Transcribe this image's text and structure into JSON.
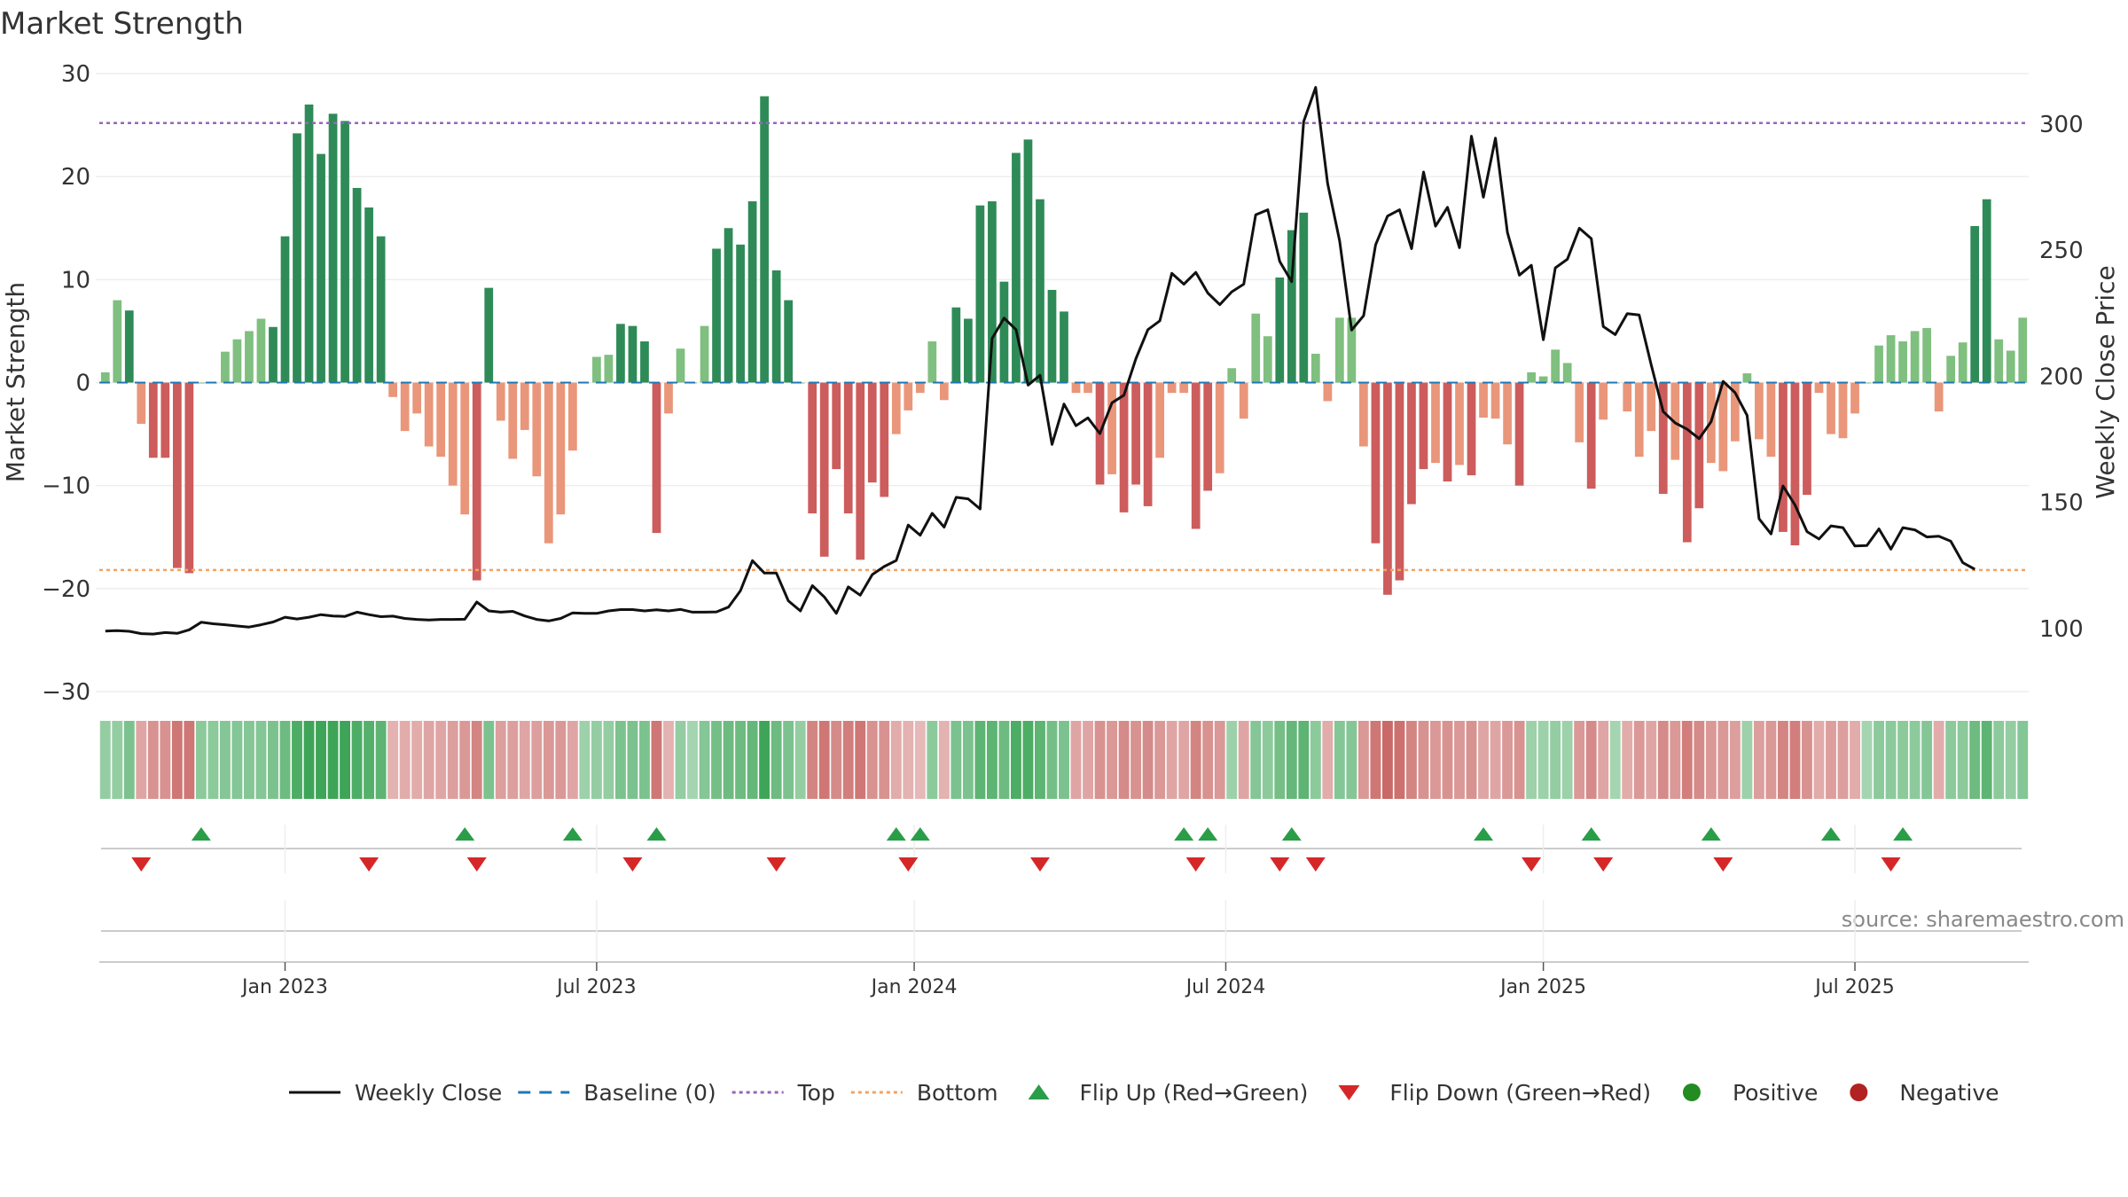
{
  "chart_data": {
    "type": "bar",
    "title": "Market Strength",
    "source_note": "source: sharemaestro.com",
    "ylabel": "Market Strength",
    "ylabel_right": "Weekly Close Price",
    "ylim": [
      -30,
      30
    ],
    "ylim_right": [
      75,
      320
    ],
    "yticks": [
      "30",
      "20",
      "10",
      "0",
      "−10",
      "−20",
      "−30"
    ],
    "yticks_values": [
      30,
      20,
      10,
      0,
      -10,
      -20,
      -30
    ],
    "yticks_right": [
      "300",
      "250",
      "200",
      "150",
      "100"
    ],
    "yticks_right_values": [
      300,
      250,
      200,
      150,
      100
    ],
    "x_ticks": [
      "Jan 2023",
      "Jul 2023",
      "Jan 2024",
      "Jul 2024",
      "Jan 2025",
      "Jul 2025"
    ],
    "x_ticks_week_index": [
      15,
      41,
      67.5,
      93.5,
      120,
      146
    ],
    "top_line": 25.2,
    "bottom_line": -18.2,
    "strength": [
      1,
      8,
      7,
      -4,
      -7.3,
      -7.3,
      -18,
      -18.5,
      0,
      0,
      3,
      4.2,
      5,
      6.2,
      5.4,
      14.2,
      24.2,
      27,
      22.2,
      26.1,
      25.4,
      18.9,
      17,
      14.2,
      -1.4,
      -4.7,
      -3,
      -6.2,
      -7.2,
      -10,
      -12.8,
      -19.2,
      9.2,
      -3.7,
      -7.4,
      -4.6,
      -9.1,
      -15.6,
      -12.8,
      -6.6,
      0,
      2.5,
      2.7,
      5.7,
      5.5,
      4,
      -14.6,
      -3,
      3.3,
      0,
      5.5,
      13,
      15,
      13.4,
      17.6,
      27.8,
      10.9,
      8,
      0,
      -12.7,
      -16.9,
      -8.4,
      -12.7,
      -17.2,
      -9.7,
      -11.1,
      -5,
      -2.7,
      -1,
      4,
      -1.7,
      7.3,
      6.2,
      17.2,
      17.6,
      9.8,
      22.3,
      23.6,
      17.8,
      9,
      6.9,
      -1,
      -1,
      -9.9,
      -8.9,
      -12.6,
      -9.9,
      -12,
      -7.3,
      -1,
      -1,
      -14.2,
      -10.5,
      -8.8,
      1.4,
      -3.5,
      6.7,
      4.5,
      10.2,
      14.8,
      16.5,
      2.8,
      -1.8,
      6.3,
      6.3,
      -6.2,
      -15.6,
      -20.6,
      -19.2,
      -11.8,
      -8.4,
      -7.8,
      -9.6,
      -8,
      -9,
      -3.4,
      -3.5,
      -6,
      -10,
      1,
      0.6,
      3.2,
      1.9,
      -5.8,
      -10.3,
      -3.6,
      0,
      -2.8,
      -7.2,
      -4.7,
      -10.8,
      -7.5,
      -15.5,
      -12.2,
      -7.8,
      -8.6,
      -5.7,
      0.9,
      -5.5,
      -7.2,
      -14.5,
      -15.8,
      -10.9,
      -1,
      -5,
      -5.4,
      -3,
      0,
      3.6,
      4.6,
      4,
      5,
      5.3,
      -2.8,
      2.6,
      3.9,
      15.2,
      17.8,
      4.2,
      3.1,
      6.3
    ],
    "close_price": [
      99,
      99.2,
      98.9,
      98,
      97.8,
      98.4,
      98.1,
      99.5,
      102.5,
      101.9,
      101.5,
      101,
      100.6,
      101.5,
      102.6,
      104.5,
      103.8,
      104.5,
      105.5,
      105,
      104.8,
      106.5,
      105.5,
      104.7,
      104.9,
      104,
      103.6,
      103.4,
      103.6,
      103.6,
      103.7,
      110.5,
      107,
      106.5,
      106.8,
      105,
      103.6,
      103,
      104,
      106.2,
      106,
      106,
      107,
      107.5,
      107.5,
      107,
      107.4,
      107,
      107.6,
      106.5,
      106.5,
      106.6,
      108.5,
      115,
      126.9,
      122,
      122,
      111,
      107,
      117,
      112.5,
      106,
      116.5,
      113.2,
      121.4,
      124.6,
      127,
      141,
      137,
      145.7,
      140.2,
      152,
      151.4,
      147.4,
      215,
      223.1,
      218.5,
      196.5,
      200.4,
      173,
      189,
      180.4,
      183.5,
      177.3,
      189.5,
      192.5,
      207,
      218.5,
      222,
      240.8,
      236.5,
      241.2,
      233,
      228.4,
      233.5,
      236.5,
      264,
      266,
      245.5,
      237.5,
      301,
      314.5,
      276.5,
      253.6,
      218.3,
      224,
      252.1,
      263.5,
      266,
      250.6,
      281,
      259.5,
      267,
      251,
      295.2,
      271,
      294.4,
      257,
      240.1,
      244,
      214.5,
      243,
      246.4,
      258.7,
      254.6,
      219.7,
      216.5,
      224.8,
      224.3,
      204.5,
      186,
      181.5,
      179,
      175.3,
      182,
      198,
      193.5,
      184.5,
      143.5,
      137.5,
      156.5,
      149,
      138.4,
      135.5,
      140.7,
      140,
      132.7,
      132.9,
      139.5,
      131.5,
      140,
      139.1,
      136.3,
      136.6,
      134.6,
      126.1,
      123.5
    ],
    "shade_strength": [
      0.35,
      0.35,
      0.5,
      0.35,
      0.5,
      0.5,
      0.7,
      0.7,
      0.4,
      0.4,
      0.45,
      0.45,
      0.45,
      0.45,
      0.5,
      0.6,
      0.8,
      0.9,
      0.9,
      0.9,
      0.9,
      0.8,
      0.75,
      0.7,
      0.25,
      0.3,
      0.3,
      0.35,
      0.35,
      0.4,
      0.45,
      0.6,
      0.5,
      0.4,
      0.4,
      0.35,
      0.4,
      0.45,
      0.45,
      0.35,
      0.3,
      0.35,
      0.35,
      0.5,
      0.5,
      0.5,
      0.7,
      0.25,
      0.35,
      0.25,
      0.45,
      0.55,
      0.6,
      0.6,
      0.65,
      0.9,
      0.6,
      0.5,
      0.35,
      0.6,
      0.7,
      0.55,
      0.65,
      0.7,
      0.5,
      0.5,
      0.3,
      0.25,
      0.2,
      0.4,
      0.25,
      0.5,
      0.5,
      0.7,
      0.7,
      0.6,
      0.8,
      0.8,
      0.7,
      0.55,
      0.5,
      0.35,
      0.35,
      0.5,
      0.45,
      0.55,
      0.5,
      0.55,
      0.45,
      0.35,
      0.35,
      0.6,
      0.5,
      0.45,
      0.3,
      0.35,
      0.45,
      0.4,
      0.55,
      0.65,
      0.7,
      0.4,
      0.3,
      0.45,
      0.45,
      0.45,
      0.7,
      0.8,
      0.75,
      0.6,
      0.5,
      0.45,
      0.5,
      0.45,
      0.5,
      0.35,
      0.35,
      0.45,
      0.5,
      0.3,
      0.3,
      0.35,
      0.3,
      0.45,
      0.55,
      0.35,
      0.25,
      0.3,
      0.45,
      0.35,
      0.55,
      0.45,
      0.65,
      0.55,
      0.45,
      0.45,
      0.4,
      0.3,
      0.4,
      0.45,
      0.6,
      0.65,
      0.5,
      0.3,
      0.4,
      0.4,
      0.3,
      0.25,
      0.4,
      0.4,
      0.4,
      0.4,
      0.45,
      0.3,
      0.4,
      0.4,
      0.6,
      0.7,
      0.4,
      0.35,
      0.45
    ],
    "flip_up_weeks": [
      8,
      30,
      39,
      46,
      66,
      68,
      90,
      92,
      99,
      115,
      124,
      134,
      144,
      150
    ],
    "flip_down_weeks": [
      3,
      22,
      31,
      44,
      56,
      67,
      78,
      91,
      98,
      101,
      119,
      125,
      135,
      149
    ],
    "legend": {
      "position": "bottom-center",
      "items": [
        {
          "label": "Weekly Close",
          "kind": "line-solid",
          "color": "#111111"
        },
        {
          "label": "Baseline (0)",
          "kind": "line-dashed",
          "color": "#1f77b4"
        },
        {
          "label": "Top",
          "kind": "line-dotted",
          "color": "#9467bd"
        },
        {
          "label": "Bottom",
          "kind": "line-dotted",
          "color": "#f4a261"
        },
        {
          "label": "Flip Up (Red→Green)",
          "kind": "triangle-up",
          "color": "#2a9d48"
        },
        {
          "label": "Flip Down (Green→Red)",
          "kind": "triangle-down",
          "color": "#d62728"
        },
        {
          "label": "Positive",
          "kind": "dot",
          "color": "#228b22"
        },
        {
          "label": "Negative",
          "kind": "dot",
          "color": "#b22222"
        }
      ]
    },
    "colors": {
      "bar_pos_strong": "#2e8b57",
      "bar_pos_light": "#7fbf7f",
      "bar_neg_strong": "#cd5c5c",
      "bar_neg_light": "#e9967a",
      "heat_pos": "#2e9e4a",
      "heat_neg": "#c0504d",
      "close_line": "#111111",
      "baseline": "#1f77b4",
      "top_line": "#9467bd",
      "bottom_line": "#f4a261",
      "text": "#333333",
      "axis": "#cccccc",
      "source": "#888888"
    }
  }
}
